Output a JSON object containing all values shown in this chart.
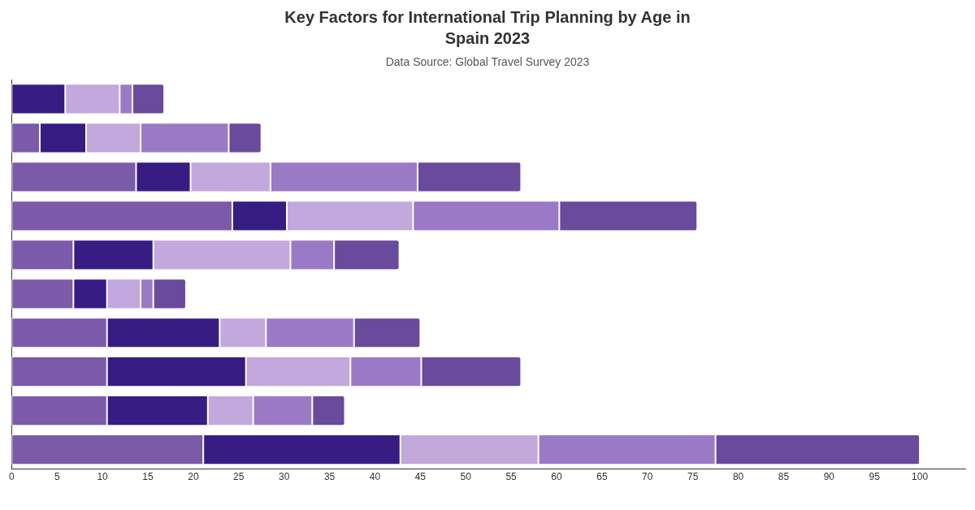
{
  "chart_data": {
    "type": "bar",
    "orientation": "horizontal",
    "stacked": true,
    "title": "Key Factors for International Trip Planning by Age in Spain 2023",
    "subtitle": "Data Source: Global Travel Survey 2023",
    "categories": [
      null,
      null,
      null,
      null,
      null,
      null,
      null,
      null,
      null,
      null
    ],
    "series": [
      {
        "color": "#7b5aa9",
        "values": [
          0,
          3.1,
          13.7,
          24.3,
          6.8,
          6.8,
          10.5,
          10.5,
          10.5,
          21.1
        ]
      },
      {
        "color": "#361c83",
        "values": [
          5.9,
          5.1,
          6.0,
          6.0,
          8.8,
          3.7,
          12.4,
          15.3,
          11.1,
          21.7
        ]
      },
      {
        "color": "#c2a8dc",
        "values": [
          6.0,
          6.0,
          8.8,
          13.9,
          15.1,
          3.7,
          5.1,
          11.5,
          5.0,
          15.2
        ]
      },
      {
        "color": "#9a7ac6",
        "values": [
          1.4,
          9.7,
          16.2,
          16.1,
          4.8,
          1.4,
          9.7,
          7.8,
          6.5,
          19.5
        ]
      },
      {
        "color": "#6a4a9c",
        "values": [
          3.5,
          3.6,
          11.4,
          15.2,
          7.2,
          3.6,
          7.3,
          11.0,
          3.6,
          22.5
        ]
      }
    ],
    "xlim": [
      0,
      105
    ],
    "xticks": [
      0,
      5,
      10,
      15,
      20,
      25,
      30,
      35,
      40,
      45,
      50,
      55,
      60,
      65,
      70,
      75,
      80,
      85,
      90,
      95,
      100
    ],
    "grid": false,
    "legend": false
  }
}
